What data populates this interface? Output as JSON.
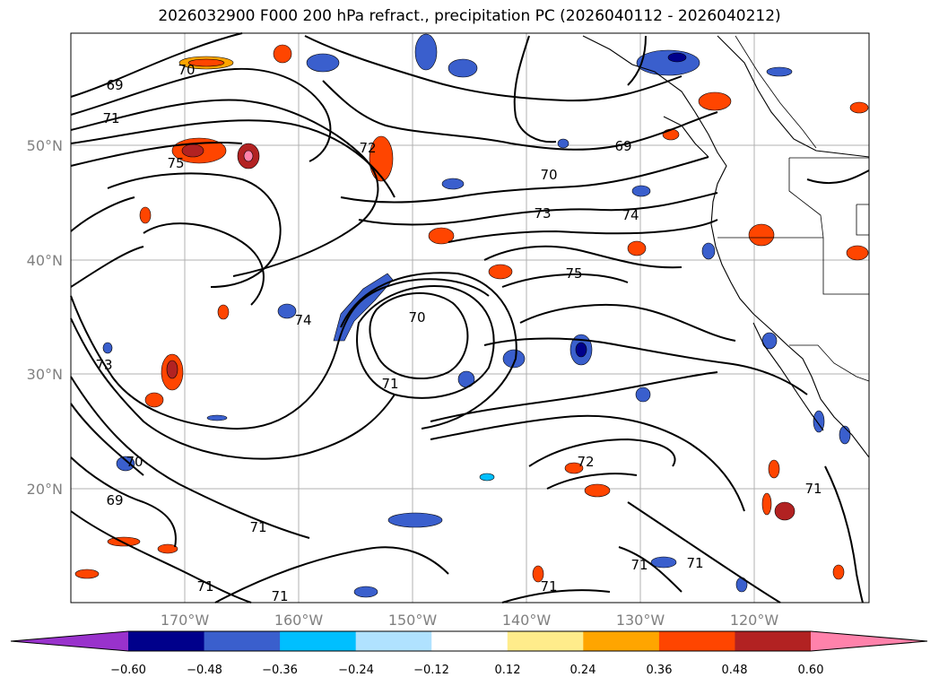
{
  "title": "2026032900 F000 200 hPa refract., precipitation PC (2026040112 - 2026040212)",
  "map": {
    "lat_ticks": [
      "50°N",
      "40°N",
      "30°N",
      "20°N"
    ],
    "lon_ticks": [
      "170°W",
      "160°W",
      "150°W",
      "140°W",
      "130°W",
      "120°W"
    ],
    "contour_labels": [
      "69",
      "70",
      "71",
      "75",
      "72",
      "70",
      "73",
      "74",
      "75",
      "69",
      "74",
      "70",
      "71",
      "73",
      "70",
      "69",
      "71",
      "71",
      "71",
      "72",
      "71",
      "71",
      "71",
      "71"
    ]
  },
  "colorbar": {
    "tick_labels": [
      "−0.60",
      "−0.48",
      "−0.36",
      "−0.24",
      "−0.12",
      "0.12",
      "0.24",
      "0.36",
      "0.48",
      "0.60"
    ],
    "colors": [
      "#9932cc",
      "#00008b",
      "#3a5fcd",
      "#00bfff",
      "#b0e2ff",
      "#ffffff",
      "#ffec8b",
      "#ffa500",
      "#ff4500",
      "#b22222",
      "#ff82ab"
    ]
  }
}
